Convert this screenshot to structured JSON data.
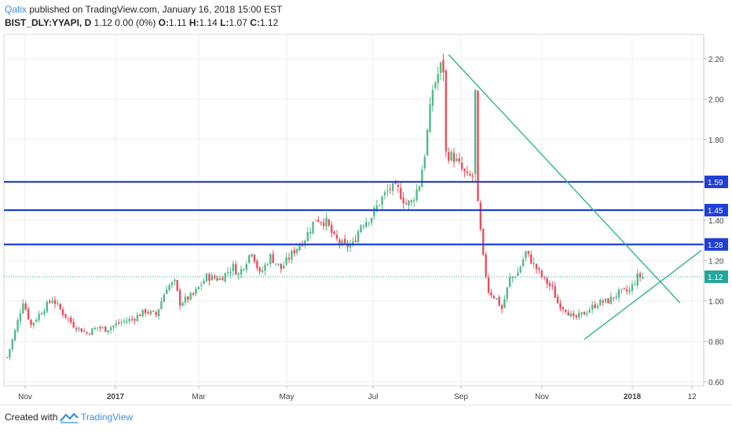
{
  "header": {
    "author": "Qatix",
    "published_text": "published on TradingView.com, January 16, 2018 15:00 EST",
    "symbol": "BIST_DLY:YYAPI, D",
    "quote": "1.12 0.00 (0%)",
    "open_label": "O:",
    "open": "1.11",
    "high_label": "H:",
    "high": "1.14",
    "low_label": "L:",
    "low": "1.07",
    "close_label": "C:",
    "close": "1.12"
  },
  "footer": {
    "created_with": "Created with",
    "brand": "TradingView"
  },
  "chart_data": {
    "type": "candlestick",
    "x_ticks": [
      "Nov",
      "2017",
      "Mar",
      "May",
      "Jul",
      "Sep",
      "Nov",
      "2018",
      "12"
    ],
    "x_ticks_bold": [
      "2017",
      "2018"
    ],
    "y_ticks": [
      "2.20",
      "2.00",
      "1.80",
      "1.40",
      "1.20",
      "1.00",
      "0.80",
      "0.60"
    ],
    "ylim": [
      0.58,
      2.32
    ],
    "grid": true,
    "close_path": [
      [
        0,
        0.72
      ],
      [
        3,
        0.85
      ],
      [
        6,
        1.0
      ],
      [
        9,
        0.88
      ],
      [
        13,
        0.95
      ],
      [
        17,
        1.01
      ],
      [
        21,
        0.94
      ],
      [
        25,
        0.88
      ],
      [
        30,
        0.84
      ],
      [
        34,
        0.87
      ],
      [
        37,
        0.86
      ],
      [
        42,
        0.89
      ],
      [
        47,
        0.91
      ],
      [
        52,
        0.95
      ],
      [
        56,
        0.93
      ],
      [
        60,
        1.07
      ],
      [
        63,
        1.09
      ],
      [
        65,
        0.99
      ],
      [
        70,
        1.03
      ],
      [
        75,
        1.12
      ],
      [
        80,
        1.11
      ],
      [
        85,
        1.17
      ],
      [
        87,
        1.13
      ],
      [
        92,
        1.25
      ],
      [
        95,
        1.13
      ],
      [
        99,
        1.22
      ],
      [
        103,
        1.16
      ],
      [
        108,
        1.25
      ],
      [
        112,
        1.31
      ],
      [
        116,
        1.41
      ],
      [
        120,
        1.39
      ],
      [
        123,
        1.31
      ],
      [
        127,
        1.27
      ],
      [
        130,
        1.28
      ],
      [
        133,
        1.38
      ],
      [
        137,
        1.42
      ],
      [
        141,
        1.51
      ],
      [
        144,
        1.56
      ],
      [
        147,
        1.55
      ],
      [
        150,
        1.48
      ],
      [
        152,
        1.49
      ],
      [
        155,
        1.58
      ],
      [
        157,
        1.73
      ],
      [
        160,
        2.05
      ],
      [
        163,
        2.16
      ],
      [
        164,
        2.15
      ],
      [
        165,
        1.73
      ],
      [
        168,
        1.71
      ],
      [
        170,
        1.67
      ],
      [
        173,
        1.61
      ],
      [
        175,
        1.62
      ],
      [
        176,
        2.03
      ],
      [
        177,
        1.47
      ],
      [
        179,
        1.21
      ],
      [
        181,
        1.05
      ],
      [
        184,
        1.01
      ],
      [
        186,
        0.96
      ],
      [
        189,
        1.11
      ],
      [
        192,
        1.14
      ],
      [
        195,
        1.24
      ],
      [
        198,
        1.18
      ],
      [
        201,
        1.12
      ],
      [
        205,
        1.06
      ],
      [
        207,
        0.99
      ],
      [
        210,
        0.96
      ],
      [
        213,
        0.91
      ],
      [
        217,
        0.94
      ],
      [
        222,
        0.99
      ],
      [
        226,
        1.0
      ],
      [
        230,
        1.04
      ],
      [
        234,
        1.05
      ],
      [
        237,
        1.12
      ],
      [
        239,
        1.12
      ]
    ],
    "support_levels": [
      {
        "value": 1.59,
        "label": "1.59",
        "color": "#1f3fd6"
      },
      {
        "value": 1.45,
        "label": "1.45",
        "color": "#1f3fd6"
      },
      {
        "value": 1.28,
        "label": "1.28",
        "color": "#1f3fd6"
      }
    ],
    "last_price": {
      "value": 1.12,
      "label": "1.12",
      "color": "#26a69a"
    },
    "trendlines": [
      {
        "from": [
          166,
          2.22
        ],
        "to": [
          253,
          0.99
        ],
        "color": "#2fb38f"
      },
      {
        "from": [
          217,
          0.81
        ],
        "to": [
          261,
          1.25
        ],
        "color": "#2fb38f"
      }
    ],
    "up_color": "#53b987",
    "down_color": "#eb4d5c",
    "bar_count": 262
  }
}
